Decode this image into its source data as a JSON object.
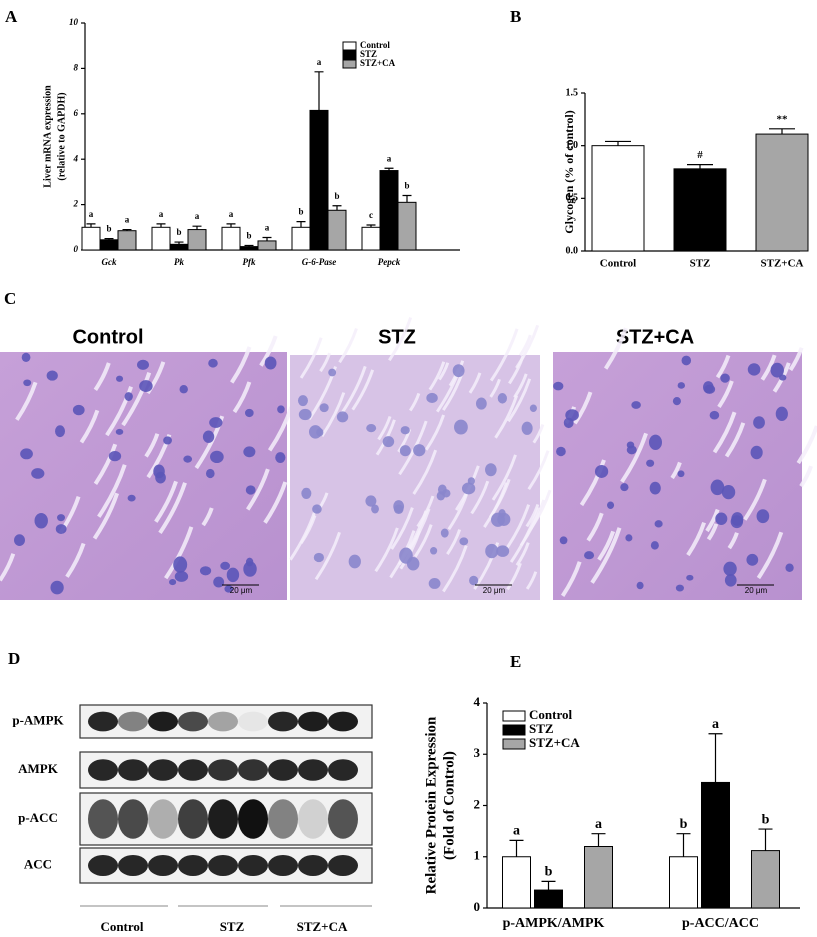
{
  "chart_data": [
    {
      "type": "bar",
      "label": "A",
      "ylabel": [
        "Liver mRNA expression",
        "(relative to GAPDH)"
      ],
      "categories": [
        "Gck",
        "Pk",
        "Pfk",
        "G-6-Pase",
        "Pepck"
      ],
      "series": [
        {
          "name": "Control",
          "color": "#ffffff",
          "values": [
            1.0,
            1.0,
            1.0,
            1.0,
            1.0
          ],
          "errors": [
            0.15,
            0.15,
            0.15,
            0.25,
            0.1
          ],
          "letters": [
            "a",
            "a",
            "a",
            "b",
            "c"
          ]
        },
        {
          "name": "STZ",
          "color": "#000000",
          "values": [
            0.45,
            0.25,
            0.15,
            6.15,
            3.5
          ],
          "errors": [
            0.05,
            0.1,
            0.05,
            1.7,
            0.1
          ],
          "letters": [
            "b",
            "b",
            "b",
            "a",
            "a"
          ]
        },
        {
          "name": "STZ+CA",
          "color": "#a6a6a6",
          "values": [
            0.85,
            0.9,
            0.4,
            1.75,
            2.1
          ],
          "errors": [
            0.05,
            0.15,
            0.15,
            0.2,
            0.3
          ],
          "letters": [
            "a",
            "a",
            "a",
            "b",
            "b"
          ]
        }
      ],
      "ylim": [
        0,
        10
      ],
      "yticks": [
        0,
        2,
        4,
        6,
        8,
        10
      ],
      "legend": "top-right"
    },
    {
      "type": "bar",
      "label": "B",
      "ylabel": [
        "Glycogen (% of control)"
      ],
      "categories": [
        "Control",
        "STZ",
        "STZ+CA"
      ],
      "values": [
        1.0,
        0.78,
        1.11
      ],
      "errors": [
        0.04,
        0.04,
        0.05
      ],
      "colors": [
        "#ffffff",
        "#000000",
        "#a6a6a6"
      ],
      "markers": [
        null,
        "#",
        "**"
      ],
      "ylim": [
        0,
        1.5
      ],
      "yticks": [
        {
          "value": 0,
          "label": "0.0"
        },
        {
          "value": 0.5,
          "label": "0.5"
        },
        {
          "value": 1,
          "label": "1.0"
        },
        {
          "value": 1.5,
          "label": "1.5"
        }
      ]
    },
    {
      "type": "bar",
      "label": "E",
      "ylabel": [
        "Relative Protein Expression",
        "(Fold of Control)"
      ],
      "categories": [
        "p-AMPK/AMPK",
        "p-ACC/ACC"
      ],
      "series": [
        {
          "name": "Control",
          "color": "#ffffff",
          "values": [
            1.0,
            1.0
          ],
          "errors": [
            0.32,
            0.45
          ],
          "letters": [
            "a",
            "b"
          ]
        },
        {
          "name": "STZ",
          "color": "#000000",
          "values": [
            0.35,
            2.45
          ],
          "errors": [
            0.17,
            0.95
          ],
          "letters": [
            "b",
            "a"
          ]
        },
        {
          "name": "STZ+CA",
          "color": "#a6a6a6",
          "values": [
            1.2,
            1.12
          ],
          "errors": [
            0.25,
            0.42
          ],
          "letters": [
            "a",
            "b"
          ]
        }
      ],
      "ylim": [
        0,
        4
      ],
      "yticks": [
        0,
        1,
        2,
        3,
        4
      ],
      "legend": "top-left"
    }
  ],
  "histology": {
    "label": "C",
    "titles": [
      "Control",
      "STZ",
      "STZ+CA"
    ],
    "scale_bar": "20 μm"
  },
  "western_blot": {
    "label": "D",
    "rows": [
      "p-AMPK",
      "AMPK",
      "p-ACC",
      "ACC"
    ],
    "groups": [
      "Control",
      "STZ",
      "STZ+CA"
    ]
  }
}
